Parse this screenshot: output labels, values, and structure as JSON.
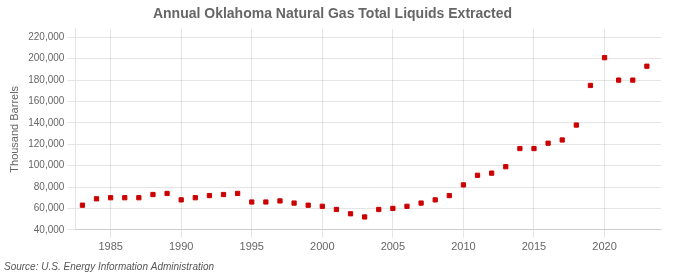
{
  "chart_data": {
    "type": "scatter",
    "title": "Annual Oklahoma Natural Gas Total Liquids Extracted",
    "ylabel": "Thousand Barrels",
    "annotation": "Source: U.S. Energy Information Administration",
    "x": [
      1983,
      1984,
      1985,
      1986,
      1987,
      1988,
      1989,
      1990,
      1991,
      1992,
      1993,
      1994,
      1995,
      1996,
      1997,
      1998,
      1999,
      2000,
      2001,
      2002,
      2003,
      2004,
      2005,
      2006,
      2007,
      2008,
      2009,
      2010,
      2011,
      2012,
      2013,
      2014,
      2015,
      2016,
      2017,
      2018,
      2019,
      2020,
      2021,
      2022,
      2023
    ],
    "values": [
      63000,
      69000,
      70000,
      70000,
      70000,
      73000,
      74000,
      68000,
      70000,
      72000,
      73000,
      74000,
      66000,
      66000,
      67000,
      65000,
      63000,
      62000,
      59000,
      55000,
      52000,
      59000,
      60000,
      62000,
      65000,
      68000,
      72000,
      82000,
      91000,
      93000,
      99000,
      116000,
      116000,
      121000,
      124000,
      138000,
      175000,
      201000,
      180000,
      180000,
      193000
    ],
    "color": "#cc0000",
    "marker": "square",
    "xlim": [
      1982.5,
      2024
    ],
    "xticks": [
      1985,
      1990,
      1995,
      2000,
      2005,
      2010,
      2015,
      2020
    ],
    "ylim": [
      40000,
      228000
    ],
    "yticks": [
      {
        "value": 40000,
        "label": "40,000"
      },
      {
        "value": 60000,
        "label": "60,000"
      },
      {
        "value": 80000,
        "label": "80,000"
      },
      {
        "value": 100000,
        "label": "100,000"
      },
      {
        "value": 120000,
        "label": "120,000"
      },
      {
        "value": 140000,
        "label": "140,000"
      },
      {
        "value": 160000,
        "label": "160,000"
      },
      {
        "value": 180000,
        "label": "180,000"
      },
      {
        "value": 200000,
        "label": "200,000"
      },
      {
        "value": 220000,
        "label": "220,000"
      }
    ],
    "grid": true
  }
}
